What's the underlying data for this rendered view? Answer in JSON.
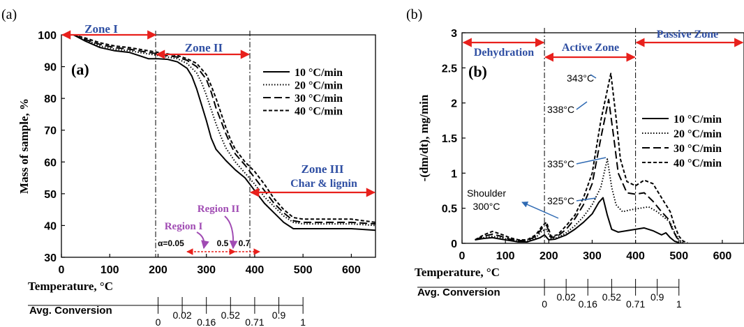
{
  "chart_data": [
    {
      "panel_label": "(a)",
      "inner_label": "(a)",
      "type": "line",
      "xlabel": "Temperature, °C",
      "ylabel": "Mass of sample, %",
      "xlim": [
        0,
        650
      ],
      "ylim": [
        30,
        100
      ],
      "xticks": [
        0,
        100,
        200,
        300,
        400,
        500,
        600
      ],
      "yticks": [
        30,
        40,
        50,
        60,
        70,
        80,
        90,
        100
      ],
      "grid": false,
      "legend_position": "right",
      "series": [
        {
          "name": "10 °C/min",
          "dash": "solid",
          "x": [
            25,
            50,
            80,
            110,
            140,
            160,
            180,
            200,
            220,
            240,
            260,
            270,
            280,
            290,
            300,
            310,
            320,
            340,
            360,
            380,
            400,
            420,
            440,
            460,
            480,
            500,
            550,
            600,
            650
          ],
          "y": [
            100,
            98,
            96,
            95,
            94.5,
            93.5,
            92.5,
            92.5,
            92.3,
            91.5,
            89.5,
            87,
            83,
            78,
            73,
            67.5,
            64,
            60.5,
            57.5,
            55,
            51,
            47,
            44,
            41,
            39,
            39,
            39,
            39,
            38.5
          ]
        },
        {
          "name": "20 °C/min",
          "dash": "dotted",
          "x": [
            25,
            50,
            80,
            110,
            140,
            160,
            180,
            200,
            220,
            240,
            260,
            280,
            290,
            300,
            310,
            320,
            330,
            340,
            360,
            380,
            400,
            420,
            440,
            460,
            480,
            500,
            550,
            600,
            650
          ],
          "y": [
            100,
            98.5,
            96.5,
            95.5,
            95,
            94.5,
            94,
            93.5,
            93,
            92.5,
            91,
            88,
            85,
            81,
            76.5,
            72,
            68,
            64.5,
            60,
            56.5,
            53,
            49,
            46,
            43,
            41,
            40.5,
            40.5,
            40.5,
            40
          ]
        },
        {
          "name": "30 °C/min",
          "dash": "longdash",
          "x": [
            25,
            50,
            80,
            110,
            140,
            160,
            180,
            200,
            220,
            240,
            260,
            280,
            300,
            310,
            320,
            330,
            340,
            350,
            360,
            380,
            400,
            420,
            440,
            460,
            480,
            500,
            550,
            600,
            650
          ],
          "y": [
            100,
            98.5,
            97,
            96,
            95.5,
            95,
            94.5,
            94,
            93.5,
            93,
            92,
            90,
            86,
            82,
            77,
            73,
            69,
            65.5,
            62.5,
            59,
            55,
            51,
            47,
            44,
            41.5,
            41,
            41,
            41,
            40.5
          ]
        },
        {
          "name": "40 °C/min",
          "dash": "shortdash",
          "x": [
            25,
            50,
            80,
            110,
            140,
            160,
            180,
            200,
            220,
            240,
            260,
            280,
            300,
            310,
            320,
            330,
            340,
            350,
            360,
            380,
            400,
            420,
            440,
            460,
            480,
            500,
            550,
            600,
            650
          ],
          "y": [
            100,
            99,
            97.5,
            96.5,
            96,
            95.5,
            95,
            94.5,
            94,
            93.5,
            92.5,
            91,
            87.5,
            84,
            80,
            75.5,
            71,
            67,
            64,
            60,
            57,
            53,
            48.5,
            45,
            42.5,
            42,
            42,
            42,
            41
          ]
        }
      ],
      "zones": [
        {
          "label": "Zone I",
          "from": 0,
          "to": 195
        },
        {
          "label": "Zone II",
          "from": 195,
          "to": 390
        },
        {
          "label": "Zone III",
          "sublabel": "Char & lignin",
          "from": 390,
          "to": 650
        }
      ],
      "zone_lines_x": [
        195,
        390
      ],
      "regions": [
        {
          "label": "Region I"
        },
        {
          "label": "Region II"
        }
      ],
      "alpha_labels": [
        "α=0.05",
        "0.5",
        "0.7"
      ],
      "conversion_axis": {
        "title": "Avg. Conversion",
        "ticks": [
          {
            "t": 200,
            "label": "0"
          },
          {
            "t": 250,
            "label": "0.02"
          },
          {
            "t": 300,
            "label": "0.16"
          },
          {
            "t": 350,
            "label": "0.52"
          },
          {
            "t": 400,
            "label": "0.71"
          },
          {
            "t": 450,
            "label": "0.9"
          },
          {
            "t": 500,
            "label": "1"
          }
        ]
      }
    },
    {
      "panel_label": "(b)",
      "inner_label": "(b)",
      "type": "line",
      "xlabel": "Temperature, °C",
      "ylabel": "-(dm/dt),  mg/min",
      "xlim": [
        0,
        650
      ],
      "ylim": [
        0,
        3
      ],
      "xticks": [
        0,
        100,
        200,
        300,
        400,
        500,
        600
      ],
      "yticks": [
        0,
        0.5,
        1,
        1.5,
        2,
        2.5,
        3
      ],
      "grid": false,
      "legend_position": "right",
      "series": [
        {
          "name": "10 °C/min",
          "dash": "solid",
          "x": [
            30,
            50,
            70,
            90,
            110,
            130,
            150,
            165,
            180,
            190,
            200,
            215,
            240,
            260,
            280,
            300,
            315,
            325,
            335,
            345,
            360,
            380,
            400,
            420,
            440,
            460,
            470,
            480,
            490,
            500
          ],
          "y": [
            0.05,
            0.07,
            0.08,
            0.06,
            0.04,
            0.02,
            0.02,
            0.05,
            0.08,
            0.12,
            0.05,
            0.06,
            0.12,
            0.2,
            0.3,
            0.42,
            0.58,
            0.65,
            0.4,
            0.2,
            0.16,
            0.18,
            0.2,
            0.22,
            0.18,
            0.12,
            0.15,
            0.08,
            0.03,
            0.01
          ]
        },
        {
          "name": "20 °C/min",
          "dash": "dotted",
          "x": [
            30,
            50,
            70,
            90,
            110,
            130,
            150,
            170,
            185,
            195,
            205,
            220,
            240,
            260,
            280,
            300,
            320,
            335,
            345,
            355,
            370,
            390,
            410,
            430,
            450,
            470,
            480,
            490,
            500,
            510
          ],
          "y": [
            0.05,
            0.08,
            0.1,
            0.08,
            0.05,
            0.03,
            0.03,
            0.08,
            0.18,
            0.2,
            0.06,
            0.08,
            0.15,
            0.25,
            0.38,
            0.55,
            0.8,
            1.2,
            0.8,
            0.55,
            0.45,
            0.48,
            0.5,
            0.52,
            0.45,
            0.35,
            0.3,
            0.15,
            0.05,
            0.01
          ]
        },
        {
          "name": "30 °C/min",
          "dash": "longdash",
          "x": [
            30,
            50,
            70,
            90,
            110,
            130,
            150,
            170,
            185,
            195,
            205,
            220,
            240,
            260,
            280,
            300,
            320,
            338,
            350,
            360,
            380,
            400,
            420,
            440,
            460,
            475,
            485,
            495,
            505
          ],
          "y": [
            0.05,
            0.1,
            0.13,
            0.1,
            0.06,
            0.04,
            0.04,
            0.1,
            0.22,
            0.26,
            0.08,
            0.1,
            0.2,
            0.35,
            0.55,
            0.85,
            1.5,
            2.05,
            1.5,
            1.0,
            0.72,
            0.7,
            0.72,
            0.6,
            0.45,
            0.35,
            0.2,
            0.08,
            0.01
          ]
        },
        {
          "name": "40 °C/min",
          "dash": "shortdash",
          "x": [
            30,
            50,
            70,
            90,
            110,
            130,
            150,
            170,
            185,
            195,
            205,
            220,
            240,
            260,
            280,
            300,
            320,
            343,
            355,
            365,
            380,
            400,
            420,
            440,
            460,
            480,
            490,
            500,
            510,
            520
          ],
          "y": [
            0.05,
            0.12,
            0.17,
            0.13,
            0.08,
            0.05,
            0.05,
            0.12,
            0.25,
            0.3,
            0.1,
            0.12,
            0.25,
            0.4,
            0.65,
            1.0,
            1.75,
            2.42,
            1.8,
            1.2,
            0.88,
            0.82,
            0.9,
            0.85,
            0.65,
            0.45,
            0.25,
            0.1,
            0.03,
            0.01
          ]
        }
      ],
      "zones": [
        {
          "label": "Dehydration",
          "from": 0,
          "to": 190
        },
        {
          "label": "Active Zone",
          "from": 190,
          "to": 400
        },
        {
          "label": "Passive Zone",
          "from": 400,
          "to": 650
        }
      ],
      "zone_lines_x": [
        190,
        400
      ],
      "annotations": [
        {
          "label": "343°C",
          "x": 343,
          "y": 2.42
        },
        {
          "label": "338°C",
          "x": 338,
          "y": 2.05
        },
        {
          "label": "335°C",
          "x": 335,
          "y": 1.22
        },
        {
          "label": "325°C",
          "x": 325,
          "y": 0.65
        },
        {
          "label": "Shoulder",
          "label2": "300°C",
          "x": 300,
          "y": 0.42
        }
      ],
      "conversion_axis": {
        "title": "Avg. Conversion",
        "ticks": [
          {
            "t": 190,
            "label": "0"
          },
          {
            "t": 240,
            "label": "0.02"
          },
          {
            "t": 290,
            "label": "0.16"
          },
          {
            "t": 345,
            "label": "0.52"
          },
          {
            "t": 400,
            "label": "0.71"
          },
          {
            "t": 450,
            "label": "0.9"
          },
          {
            "t": 500,
            "label": "1"
          }
        ]
      }
    }
  ]
}
